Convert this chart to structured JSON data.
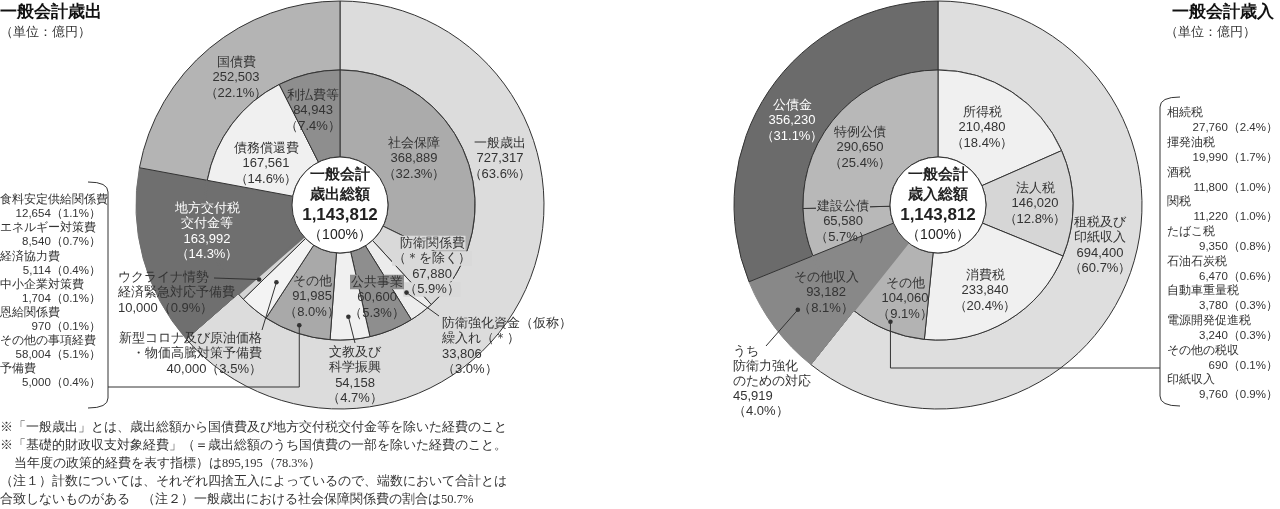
{
  "chart_data": [
    {
      "type": "donut",
      "title": "一般会計歳出",
      "subtitle": "（単位：億円）",
      "categories": [
        "一般歳出",
        "地方交付税交付金等",
        "国債費"
      ],
      "values": [
        727317,
        163992,
        252503
      ],
      "colors": [
        "#dcdcdc",
        "#6f6f6f",
        "#b4b4b4"
      ],
      "value_labels": [
        "727,317\n（63.6%）",
        "163,992\n（14.3%）",
        "252,503\n（22.1%）"
      ],
      "annotations": [
        "※「一般歳出」とは、歳出総額から国債費及び地方交付税交付金等を除いた経費のこと",
        "※「基礎的財政収支対象経費」（＝歳出総額のうち国債費の一部を除いた経費のこと。当年度の政策的経費を表す指標）は895,195（78.3%）",
        "（注１）計数については、それぞれ四捨五入によっているので、端数において合計とは合致しないものがある",
        "（注２）一般歳出における社会保障関係費の割合は50.7%"
      ]
    },
    {
      "type": "donut",
      "categories": [
        "社会保障",
        "防衛関係費（＊を除く）",
        "防衛強化資金（仮称）繰入れ（＊）",
        "公共事業",
        "文教及び科学振興",
        "その他",
        "新型コロナ及び原油価格・物価高騰対策予備費",
        "ウクライナ情勢経済緊急対応予備費",
        null,
        "債務償還費",
        "利払費等"
      ],
      "values": [
        368889,
        67880,
        33806,
        60600,
        54158,
        91985,
        40000,
        10000,
        163992,
        167561,
        84943
      ],
      "colors": [
        "#ababab",
        "#d9d9d9",
        "#ececec",
        "#8e8e8e",
        "#f0f0f0",
        "#a9a9a9",
        "#f3f3f3",
        "#d4d4d4",
        "#6f6f6f",
        "#f0f0f0",
        "#8e8e8e"
      ],
      "value_labels": [
        "368,889\n（32.3%）",
        "67,880\n（5.9%）",
        "33,806\n（3.0%）",
        "60,600\n（5.3%）",
        "54,158\n（4.7%）",
        "91,985\n（8.0%）",
        "40,000（3.5%）",
        "10,000（0.9%）",
        null,
        "167,561\n（14.6%）",
        "84,943\n（7.4%）"
      ],
      "annotations": [
        "一般会計歳出総額\n1,143,812\n（100%）",
        "食料安定供給関係費\n12,654（1.1%）",
        "エネルギー対策費\n8,540（0.7%）",
        "経済協力費\n5,114（0.4%）",
        "中小企業対策費\n1,704（0.1%）",
        "恩給関係費\n970（0.1%）",
        "その他の事項経費\n58,004（5.1%）",
        "予備費\n5,000（0.4%）"
      ]
    },
    {
      "type": "donut",
      "title": "一般会計歳入",
      "subtitle": "（単位：億円）",
      "categories": [
        "租税及び印紙収入",
        "その他収入",
        "公債金"
      ],
      "values": [
        694400,
        93182,
        356230
      ],
      "colors": [
        "#dedede",
        "#888888",
        "#6b6b6b"
      ],
      "value_labels": [
        "694,400\n（60.7%）",
        "93,182\n（8.1%）",
        "356,230\n（31.1%）"
      ],
      "annotations": [
        "うち防衛力強化のための対応\n45,919\n（4.0%）"
      ]
    },
    {
      "type": "donut",
      "categories": [
        "所得税",
        "法人税",
        "消費税",
        "その他",
        null,
        "建設公債",
        "特例公債"
      ],
      "values": [
        210480,
        146020,
        233840,
        104060,
        93182,
        65580,
        290650
      ],
      "colors": [
        "#f0f0f0",
        "#d6d6d6",
        "#f0f0f0",
        "#b3b3b3",
        "#888888",
        "#b8b8b8",
        "#b8b8b8"
      ],
      "value_labels": [
        "210,480\n（18.4%）",
        "146,020\n（12.8%）",
        "233,840\n（20.4%）",
        "104,060\n（9.1%）",
        null,
        "65,580\n（5.7%）",
        "290,650\n（25.4%）"
      ],
      "annotations": [
        "一般会計歳入総額\n1,143,812\n（100%）",
        "相続税\n27,760（2.4%）",
        "揮発油税\n19,990（1.7%）",
        "酒税\n11,800（1.0%）",
        "関税\n11,220（1.0%）",
        "たばこ税\n9,350（0.8%）",
        "石油石炭税\n6,470（0.6%）",
        "自動車重量税\n3,780（0.3%）",
        "電源開発促進税\n3,240（0.3%）",
        "その他の税収\n690（0.1%）",
        "印紙収入\n9,760（0.9%）"
      ]
    }
  ]
}
